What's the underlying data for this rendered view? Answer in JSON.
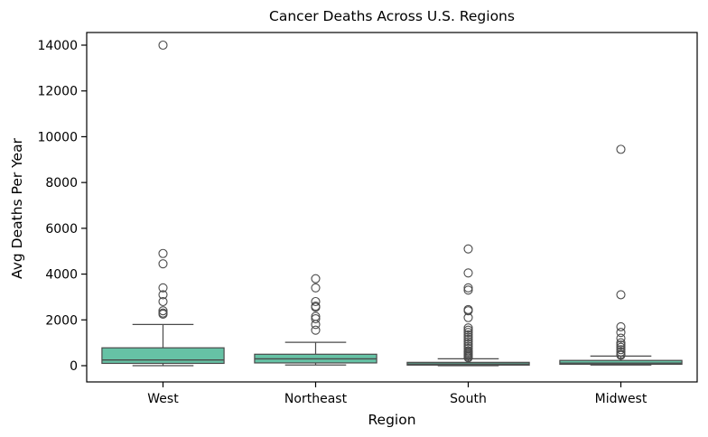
{
  "chart_data": {
    "type": "box",
    "title": "Cancer Deaths Across U.S. Regions",
    "xlabel": "Region",
    "ylabel": "Avg Deaths Per Year",
    "ylim": [
      -700,
      14500
    ],
    "yticks": [
      0,
      2000,
      4000,
      6000,
      8000,
      10000,
      12000,
      14000
    ],
    "categories": [
      "West",
      "Northeast",
      "South",
      "Midwest"
    ],
    "boxes": [
      {
        "category": "West",
        "whisker_low": 0,
        "q1": 100,
        "median": 250,
        "q3": 780,
        "whisker_high": 1800,
        "outliers": [
          14000,
          4900,
          4450,
          3400,
          3100,
          2800,
          2400,
          2300,
          2250
        ]
      },
      {
        "category": "Northeast",
        "whisker_low": 30,
        "q1": 120,
        "median": 300,
        "q3": 500,
        "whisker_high": 1020,
        "outliers": [
          3800,
          3400,
          2800,
          2600,
          2550,
          2150,
          2050,
          1800,
          1550
        ]
      },
      {
        "category": "South",
        "whisker_low": 0,
        "q1": 25,
        "median": 70,
        "q3": 145,
        "whisker_high": 300,
        "outliers": [
          5100,
          4050,
          3400,
          3300,
          2450,
          2400,
          2100,
          1650,
          1550,
          1450,
          1350,
          1250,
          1150,
          1050,
          950,
          850,
          750,
          650,
          600,
          550,
          500,
          450,
          400,
          350
        ]
      },
      {
        "category": "Midwest",
        "whisker_low": 30,
        "q1": 60,
        "median": 110,
        "q3": 230,
        "whisker_high": 420,
        "outliers": [
          9450,
          3100,
          1700,
          1450,
          1200,
          1000,
          900,
          800,
          700,
          600,
          500,
          450
        ]
      }
    ],
    "grid": false,
    "colors": {
      "box_fill": "#66c2a5",
      "lines": "#4a4a4a",
      "outlier_edge": "#4a4a4a"
    }
  }
}
